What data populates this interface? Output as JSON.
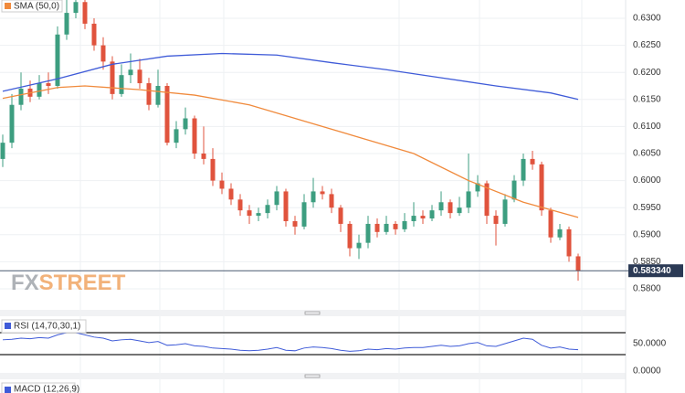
{
  "chart_data": {
    "type": "candlestick",
    "indicator_label": "SMA (50,0)",
    "up_color": "#3d9e80",
    "down_color": "#e0533d",
    "open": [
      0.604,
      0.607,
      0.614,
      0.617,
      0.6155,
      0.618,
      0.6175,
      0.627,
      0.631,
      0.633,
      0.629,
      0.625,
      0.622,
      0.616,
      0.6195,
      0.6205,
      0.618,
      0.614,
      0.6175,
      0.607,
      0.6095,
      0.6115,
      0.605,
      0.604,
      0.6,
      0.5985,
      0.5965,
      0.5945,
      0.5935,
      0.594,
      0.5955,
      0.598,
      0.5925,
      0.5915,
      0.596,
      0.598,
      0.5975,
      0.595,
      0.592,
      0.5875,
      0.5885,
      0.592,
      0.5905,
      0.592,
      0.591,
      0.5925,
      0.5935,
      0.593,
      0.5945,
      0.596,
      0.594,
      0.595,
      0.598,
      0.5995,
      0.5935,
      0.592,
      0.5965,
      0.6,
      0.604,
      0.603,
      0.5945,
      0.5895,
      0.591,
      0.586
    ],
    "high": [
      0.6085,
      0.616,
      0.62,
      0.6185,
      0.6195,
      0.62,
      0.6285,
      0.6335,
      0.6345,
      0.634,
      0.63,
      0.6265,
      0.623,
      0.6215,
      0.6235,
      0.6225,
      0.619,
      0.6205,
      0.618,
      0.611,
      0.6135,
      0.612,
      0.61,
      0.606,
      0.6015,
      0.5995,
      0.5975,
      0.5955,
      0.595,
      0.5965,
      0.599,
      0.5985,
      0.5935,
      0.5975,
      0.6005,
      0.599,
      0.5985,
      0.5955,
      0.5925,
      0.59,
      0.5935,
      0.593,
      0.5935,
      0.5925,
      0.594,
      0.596,
      0.5945,
      0.5955,
      0.598,
      0.5965,
      0.597,
      0.605,
      0.601,
      0.6,
      0.5945,
      0.5975,
      0.601,
      0.605,
      0.6055,
      0.6035,
      0.595,
      0.592,
      0.5915,
      0.5865
    ],
    "low": [
      0.6025,
      0.606,
      0.613,
      0.6145,
      0.615,
      0.616,
      0.617,
      0.626,
      0.63,
      0.628,
      0.624,
      0.6205,
      0.615,
      0.6155,
      0.618,
      0.617,
      0.613,
      0.6135,
      0.6065,
      0.606,
      0.6085,
      0.604,
      0.603,
      0.599,
      0.5975,
      0.5955,
      0.5935,
      0.592,
      0.5925,
      0.593,
      0.5945,
      0.5915,
      0.59,
      0.591,
      0.595,
      0.5965,
      0.594,
      0.5905,
      0.586,
      0.5855,
      0.5875,
      0.5895,
      0.59,
      0.59,
      0.5905,
      0.5915,
      0.592,
      0.5925,
      0.5935,
      0.593,
      0.5935,
      0.594,
      0.597,
      0.592,
      0.588,
      0.5915,
      0.596,
      0.599,
      0.602,
      0.5935,
      0.5885,
      0.589,
      0.585,
      0.5815
    ],
    "close": [
      0.607,
      0.614,
      0.617,
      0.6155,
      0.618,
      0.6175,
      0.627,
      0.631,
      0.633,
      0.629,
      0.625,
      0.622,
      0.616,
      0.6195,
      0.6205,
      0.618,
      0.614,
      0.6175,
      0.607,
      0.6095,
      0.6115,
      0.605,
      0.604,
      0.6,
      0.5985,
      0.5965,
      0.5945,
      0.5935,
      0.594,
      0.5955,
      0.598,
      0.5925,
      0.5915,
      0.596,
      0.598,
      0.5975,
      0.595,
      0.592,
      0.5875,
      0.5885,
      0.592,
      0.5905,
      0.592,
      0.591,
      0.5925,
      0.5935,
      0.593,
      0.5945,
      0.596,
      0.594,
      0.595,
      0.598,
      0.5995,
      0.5935,
      0.592,
      0.5965,
      0.6,
      0.604,
      0.603,
      0.5945,
      0.5895,
      0.591,
      0.586,
      0.58334
    ],
    "lines": [
      {
        "color": "#3f5bd8",
        "x": [
          0,
          6,
          12,
          18,
          24,
          30,
          36,
          42,
          48,
          54,
          60,
          63
        ],
        "values": [
          0.6165,
          0.6188,
          0.6215,
          0.623,
          0.6235,
          0.6232,
          0.6218,
          0.6205,
          0.619,
          0.6175,
          0.6162,
          0.615
        ]
      },
      {
        "color": "#f08a3c",
        "x": [
          0,
          6,
          9,
          15,
          21,
          27,
          33,
          39,
          45,
          51,
          57,
          63
        ],
        "values": [
          0.6152,
          0.6172,
          0.6175,
          0.6168,
          0.6158,
          0.614,
          0.611,
          0.608,
          0.605,
          0.6,
          0.596,
          0.5932
        ]
      }
    ],
    "ylim": [
      0.57628,
      0.63338
    ],
    "yticks": [
      {
        "value": 0.58,
        "label": "0.5800"
      },
      {
        "value": 0.585,
        "label": "0.5850"
      },
      {
        "value": 0.59,
        "label": "0.5900"
      },
      {
        "value": 0.595,
        "label": "0.5950"
      },
      {
        "value": 0.6,
        "label": "0.6000"
      },
      {
        "value": 0.605,
        "label": "0.6050"
      },
      {
        "value": 0.61,
        "label": "0.6100"
      },
      {
        "value": 0.615,
        "label": "0.6150"
      },
      {
        "value": 0.62,
        "label": "0.6200"
      },
      {
        "value": 0.625,
        "label": "0.6250"
      },
      {
        "value": 0.63,
        "label": "0.6300"
      }
    ],
    "last": {
      "value": 0.58334,
      "label": "0.583340"
    },
    "watermark": [
      "FX",
      "STREET"
    ],
    "rsi": {
      "label": "RSI (14,70,30,1)",
      "color": "#3f5bd8",
      "values": [
        57,
        58,
        60,
        59,
        61,
        60,
        66,
        70,
        70,
        66,
        62,
        60,
        55,
        57,
        58,
        55,
        52,
        54,
        47,
        48,
        50,
        46,
        45,
        42,
        41,
        40,
        38,
        37,
        38,
        40,
        43,
        38,
        37,
        42,
        44,
        43,
        41,
        38,
        36,
        37,
        40,
        39,
        41,
        40,
        42,
        43,
        43,
        45,
        47,
        45,
        46,
        50,
        52,
        46,
        45,
        50,
        55,
        60,
        58,
        47,
        42,
        44,
        40,
        39
      ],
      "levels": [
        70,
        30
      ],
      "ylim": [
        -10,
        96.7
      ],
      "yticks": [
        {
          "value": 50,
          "label": "50.0000"
        },
        {
          "value": 0,
          "label": "0.0000"
        }
      ]
    },
    "macd": {
      "label": "MACD (12,26,9)"
    }
  }
}
